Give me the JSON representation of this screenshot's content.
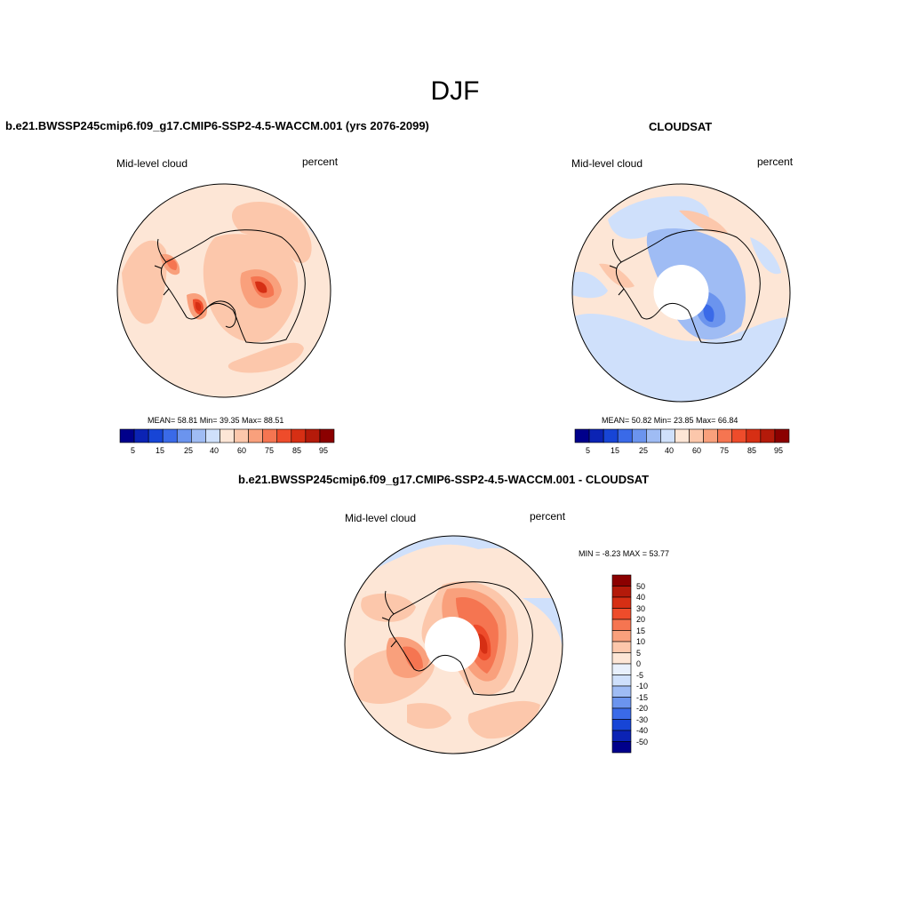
{
  "title": "DJF",
  "panels": [
    {
      "title": "b.e21.BWSSP245cmip6.f09_g17.CMIP6-SSP2-4.5-WACCM.001 (yrs 2076-2099)",
      "left_label": "Mid-level cloud",
      "right_label": "percent",
      "stats": "MEAN=  58.81  Min=  39.35  Max=  88.51",
      "colorbar_labels": [
        "5",
        "15",
        "25",
        "40",
        "60",
        "75",
        "85",
        "95"
      ]
    },
    {
      "title": "CLOUDSAT",
      "left_label": "Mid-level cloud",
      "right_label": "percent",
      "stats": "MEAN=  50.82  Min=  23.85  Max=  66.84",
      "colorbar_labels": [
        "5",
        "15",
        "25",
        "40",
        "60",
        "75",
        "85",
        "95"
      ]
    },
    {
      "title": "b.e21.BWSSP245cmip6.f09_g17.CMIP6-SSP2-4.5-WACCM.001 - CLOUDSAT",
      "left_label": "Mid-level cloud",
      "right_label": "percent",
      "stats": "MIN =  -8.23 MAX =  53.77",
      "colorbar_labels": [
        "50",
        "40",
        "30",
        "20",
        "15",
        "10",
        "5",
        "0",
        "-5",
        "-10",
        "-15",
        "-20",
        "-30",
        "-40",
        "-50"
      ]
    }
  ],
  "colors": {
    "abs_scale": [
      "#00008b",
      "#0b23b4",
      "#1745d6",
      "#3a6ae8",
      "#6b94ee",
      "#9fbcf4",
      "#cfe0fb",
      "#fde6d6",
      "#fcc7ab",
      "#f9a07c",
      "#f57551",
      "#ee4c2b",
      "#d62f14",
      "#b41a0a",
      "#8b0000"
    ],
    "diff_scale": [
      "#8b0000",
      "#b41a0a",
      "#d62f14",
      "#ee4c2b",
      "#f57551",
      "#f9a07c",
      "#fcc7ab",
      "#fde6d6",
      "#e8f0fc",
      "#cfe0fb",
      "#9fbcf4",
      "#6b94ee",
      "#3a6ae8",
      "#1745d6",
      "#0b23b4",
      "#00008b"
    ]
  }
}
